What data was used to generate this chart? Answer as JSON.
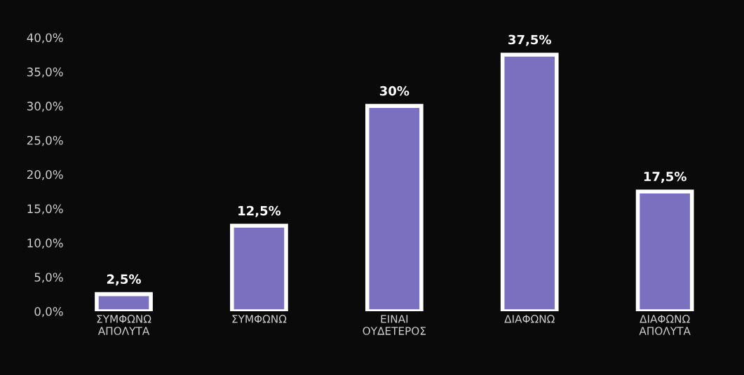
{
  "chart_data": {
    "type": "bar",
    "categories": [
      "ΣΥΜΦΩΝΩ\nΑΠΟΛΥΤΑ",
      "ΣΥΜΦΩΝΩ",
      "ΕΙΝΑΙ\nΟΥΔΕΤΕΡΟΣ",
      "ΔΙΑΦΩΝΩ",
      "ΔΙΑΦΩΝΩ\nΑΠΟΛΥΤΑ"
    ],
    "values": [
      2.5,
      12.5,
      30,
      37.5,
      17.5
    ],
    "value_labels": [
      "2,5%",
      "12,5%",
      "30%",
      "37,5%",
      "17,5%"
    ],
    "color": "#7b6fc0",
    "ylim": [
      0,
      40
    ],
    "yticks": [
      {
        "value": 0,
        "label": "0,0%"
      },
      {
        "value": 5,
        "label": "5,0%"
      },
      {
        "value": 10,
        "label": "10,0%"
      },
      {
        "value": 15,
        "label": "15,0%"
      },
      {
        "value": 20,
        "label": "20,0%"
      },
      {
        "value": 25,
        "label": "25,0%"
      },
      {
        "value": 30,
        "label": "30,0%"
      },
      {
        "value": 35,
        "label": "35,0%"
      },
      {
        "value": 40,
        "label": "40,0%"
      }
    ],
    "grid": false
  }
}
